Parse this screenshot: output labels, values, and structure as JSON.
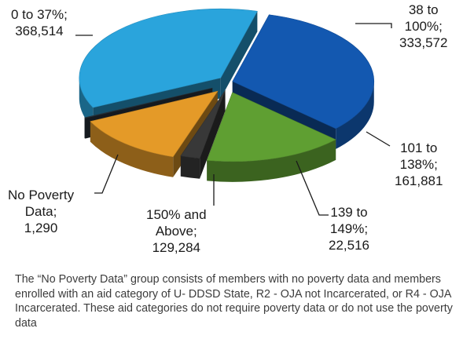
{
  "chart_data": {
    "type": "pie",
    "title": "",
    "categories": [
      "38 to 100%",
      "101 to 138%",
      "139 to 149%",
      "150% and Above",
      "No Poverty Data",
      "0 to 37%"
    ],
    "values": [
      333572,
      161881,
      22516,
      129284,
      1290,
      368514
    ],
    "colors": [
      "#1358b0",
      "#5f9f32",
      "#383838",
      "#e49a28",
      "#2b3740",
      "#2aa4dc"
    ],
    "style": "3d-exploded"
  },
  "labels": {
    "s0": [
      "38 to",
      "100%;",
      "333,572"
    ],
    "s1": [
      "101 to",
      "138%;",
      "161,881"
    ],
    "s2": [
      "139 to",
      "149%;",
      "22,516"
    ],
    "s3": [
      "150% and",
      "Above;",
      "129,284"
    ],
    "s4": [
      "No Poverty",
      "Data;",
      "1,290"
    ],
    "s5": [
      "0 to 37%;",
      "368,514"
    ]
  },
  "footnote": "The “No Poverty Data” group consists of members with no poverty data and members enrolled with an aid category of U- DDSD State, R2 - OJA not Incarcerated, or R4 - OJA Incarcerated. These aid categories do not require poverty data or do not use the poverty data"
}
